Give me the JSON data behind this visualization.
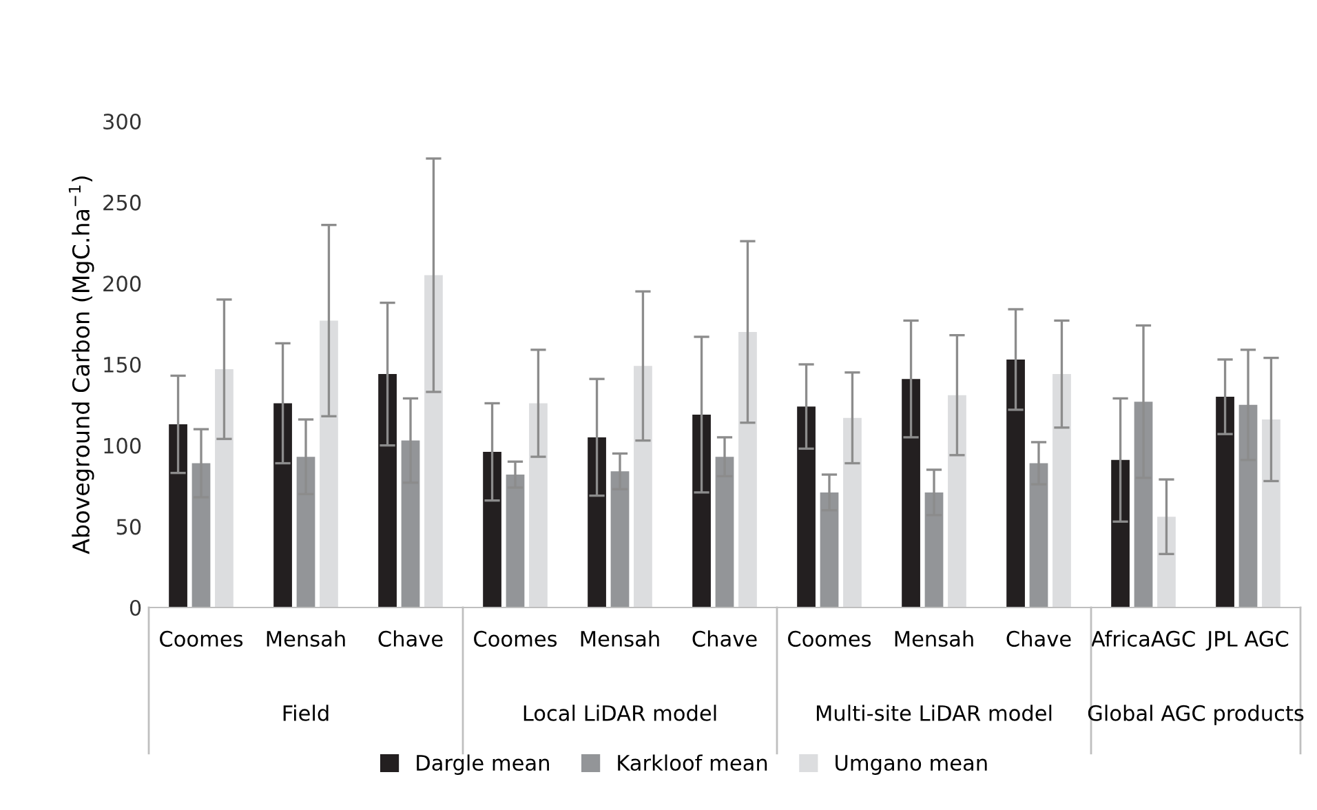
{
  "chart_data": {
    "type": "bar",
    "ylabel": "Aboveground Carbon (MgC.ha$^{−1}$)",
    "categories": [
      "Coomes",
      "Mensah",
      "Chave",
      "Coomes",
      "Mensah",
      "Chave",
      "Coomes",
      "Mensah",
      "Chave",
      "AfricaAGC",
      "JPL AGC"
    ],
    "annotations": [
      "Field",
      "Local LiDAR model",
      "Multi-site LiDAR model",
      "Global AGC products"
    ],
    "series": [
      {
        "name": "Dargle mean",
        "color": "#231f20",
        "values": [
          113,
          126,
          144,
          96,
          105,
          119,
          124,
          141,
          153,
          91,
          130
        ],
        "errors": [
          30,
          37,
          44,
          30,
          36,
          48,
          26,
          36,
          31,
          38,
          23
        ]
      },
      {
        "name": "Karkloof mean",
        "color": "#939598",
        "values": [
          89,
          93,
          103,
          82,
          84,
          93,
          71,
          71,
          89,
          127,
          125
        ],
        "errors": [
          21,
          23,
          26,
          8,
          11,
          12,
          11,
          14,
          13,
          47,
          34
        ]
      },
      {
        "name": "Umgano mean",
        "color": "#dcdddf",
        "values": [
          147,
          177,
          205,
          126,
          149,
          170,
          117,
          131,
          144,
          56,
          116
        ],
        "errors": [
          43,
          59,
          72,
          33,
          46,
          56,
          28,
          37,
          33,
          23,
          38
        ]
      }
    ],
    "ylim": [
      0,
      300
    ],
    "yticks": [
      0,
      50,
      100,
      150,
      200,
      250,
      300
    ],
    "grid": false,
    "legend": "bottom"
  }
}
